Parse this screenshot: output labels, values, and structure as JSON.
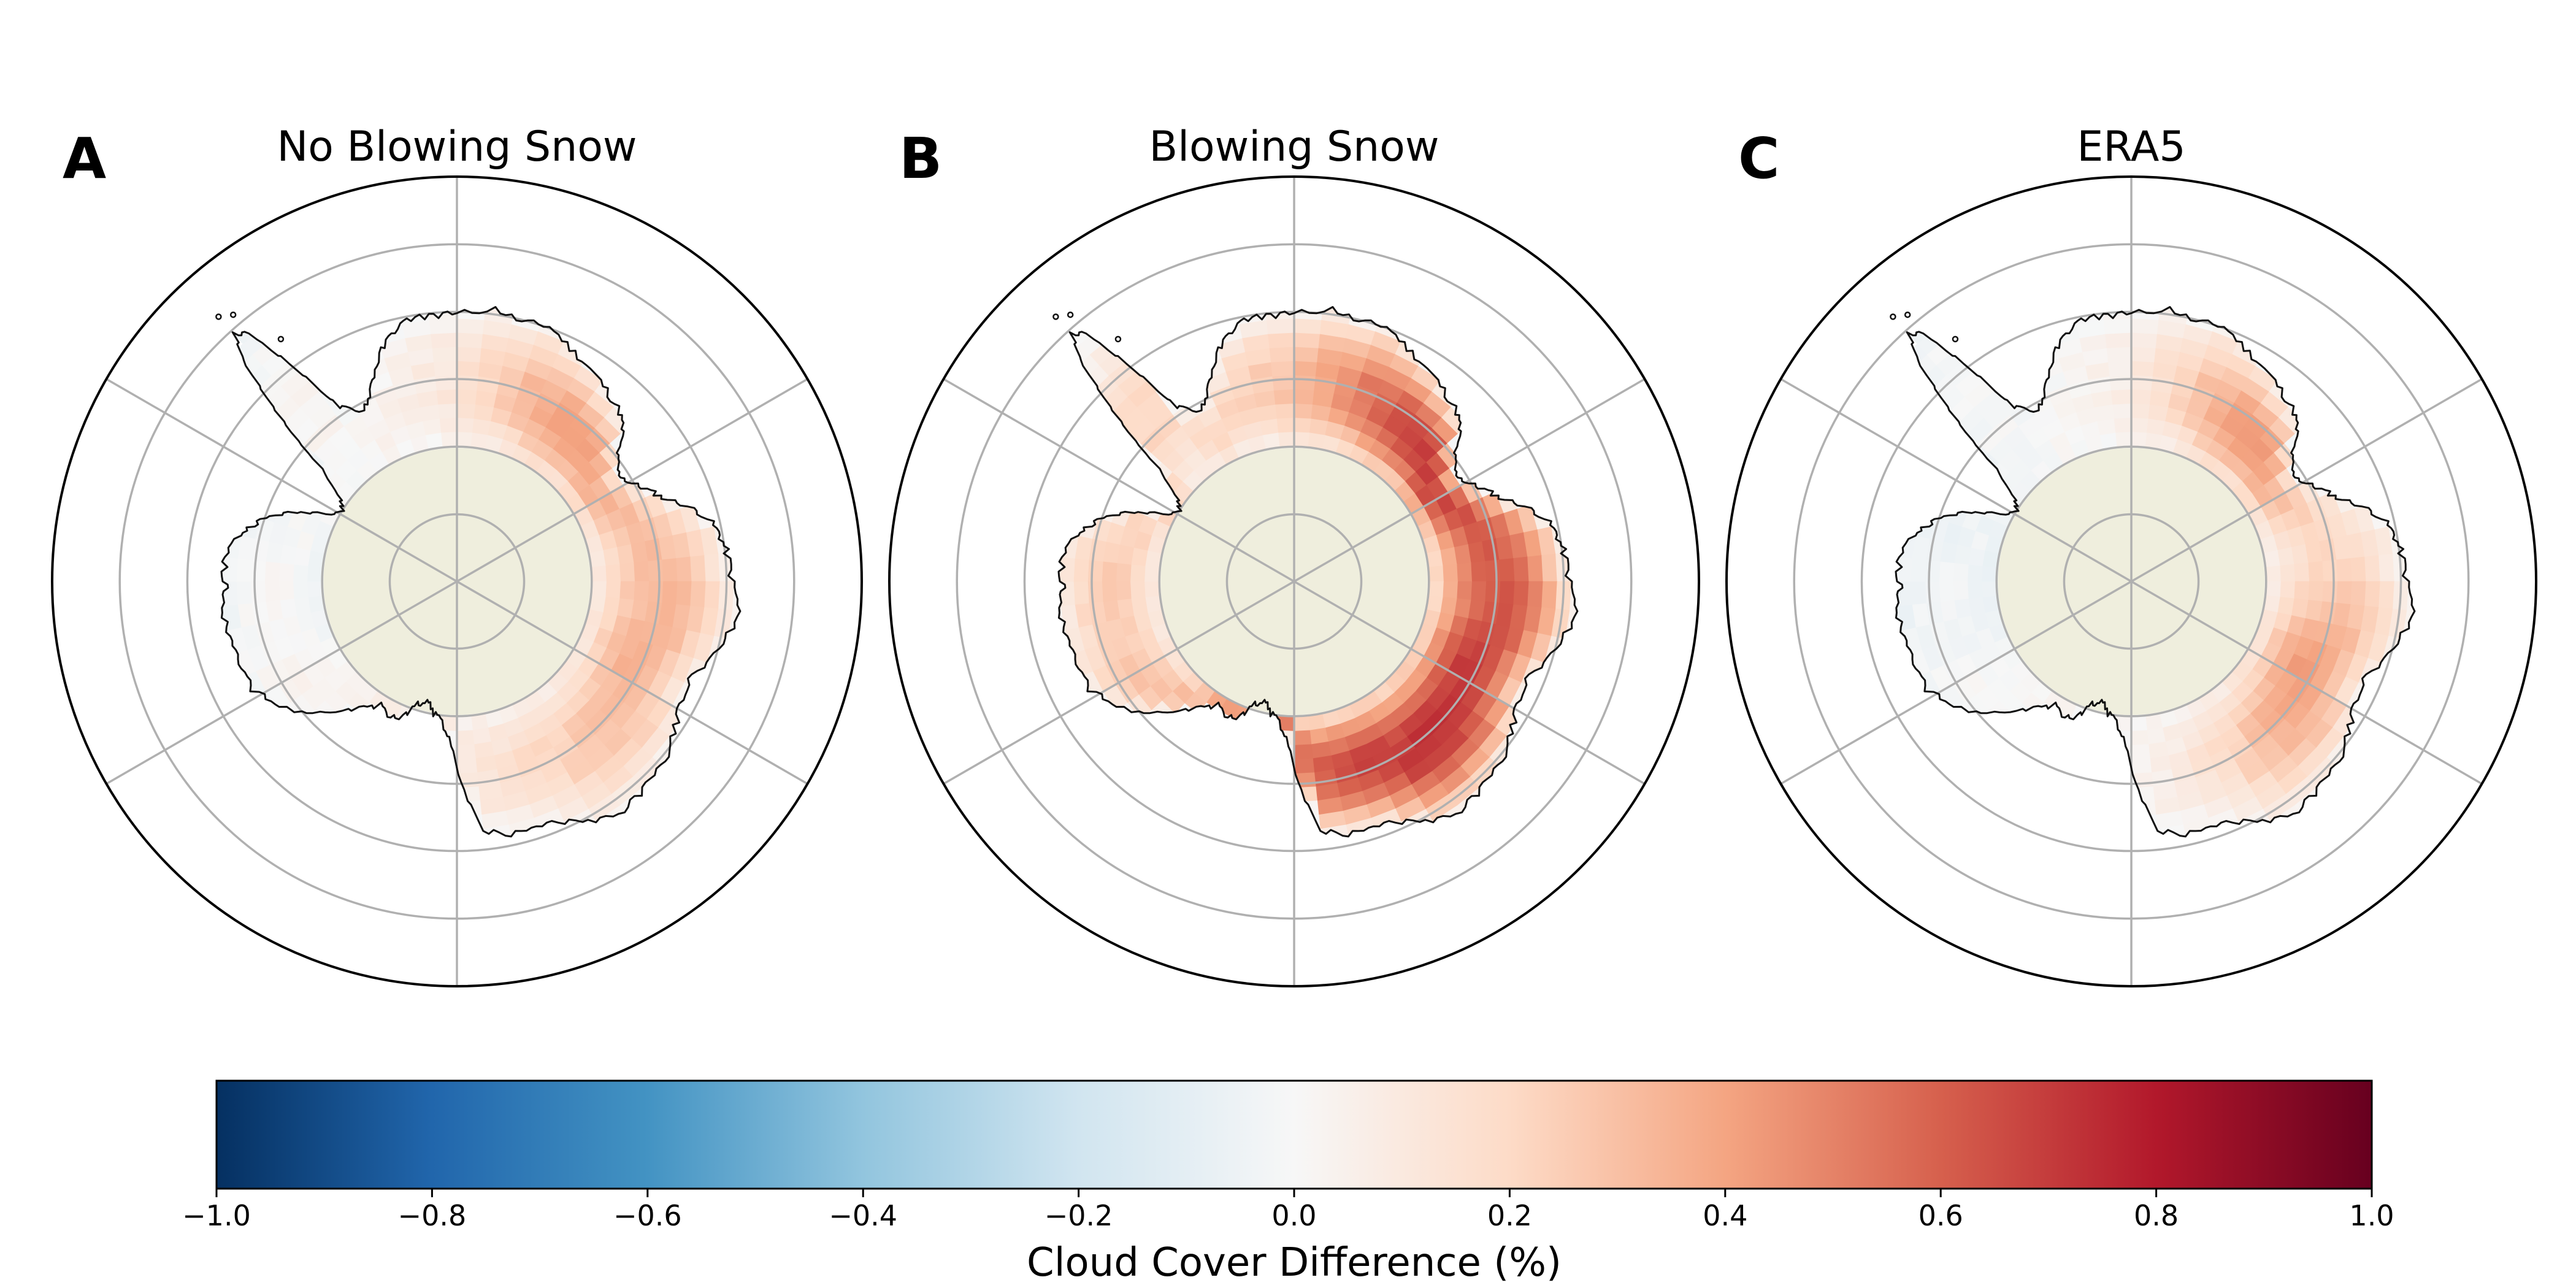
{
  "panels": [
    {
      "letter": "A",
      "title": "No Blowing Snow",
      "anomaly": {
        "peak_value": 0.3,
        "peak_azimuth_deg": 110,
        "azimuth_spread_deg": 55,
        "secondary_peak_value": 0.32,
        "secondary_peak_azimuth_deg": 35,
        "secondary_azimuth_spread_deg": 30,
        "west_value": -0.05,
        "background_value": 0.05
      }
    },
    {
      "letter": "B",
      "title": "Blowing Snow",
      "anomaly": {
        "peak_value": 0.55,
        "peak_azimuth_deg": 135,
        "azimuth_spread_deg": 75,
        "secondary_peak_value": 0.4,
        "secondary_peak_azimuth_deg": 40,
        "secondary_azimuth_spread_deg": 35,
        "west_value": 0.05,
        "background_value": 0.18
      }
    },
    {
      "letter": "C",
      "title": "ERA5",
      "anomaly": {
        "peak_value": 0.42,
        "peak_azimuth_deg": 40,
        "azimuth_spread_deg": 30,
        "secondary_peak_value": 0.4,
        "secondary_peak_azimuth_deg": 120,
        "secondary_azimuth_spread_deg": 35,
        "west_value": -0.06,
        "background_value": 0.02
      }
    }
  ],
  "colorbar": {
    "label": "Cloud Cover Difference (%)",
    "min": -1.0,
    "max": 1.0,
    "colormap": "RdBu_r",
    "stops": [
      "#053061",
      "#2166ac",
      "#4393c3",
      "#92c5de",
      "#d1e5f0",
      "#f7f7f7",
      "#fddbc7",
      "#f4a582",
      "#d6604d",
      "#b2182b",
      "#67001f"
    ],
    "ticks": [
      {
        "value": -1.0,
        "label": "−1.0"
      },
      {
        "value": -0.8,
        "label": "−0.8"
      },
      {
        "value": -0.6,
        "label": "−0.6"
      },
      {
        "value": -0.4,
        "label": "−0.4"
      },
      {
        "value": -0.2,
        "label": "−0.2"
      },
      {
        "value": 0.0,
        "label": "0.0"
      },
      {
        "value": 0.2,
        "label": "0.2"
      },
      {
        "value": 0.4,
        "label": "0.4"
      },
      {
        "value": 0.6,
        "label": "0.6"
      },
      {
        "value": 0.8,
        "label": "0.8"
      },
      {
        "value": 1.0,
        "label": "1.0"
      }
    ]
  },
  "map_style": {
    "pole_fill": "#efeedd",
    "gridline_color": "#b0b0b0",
    "coastline_color": "#111111",
    "projection": "south-polar-stereographic"
  }
}
